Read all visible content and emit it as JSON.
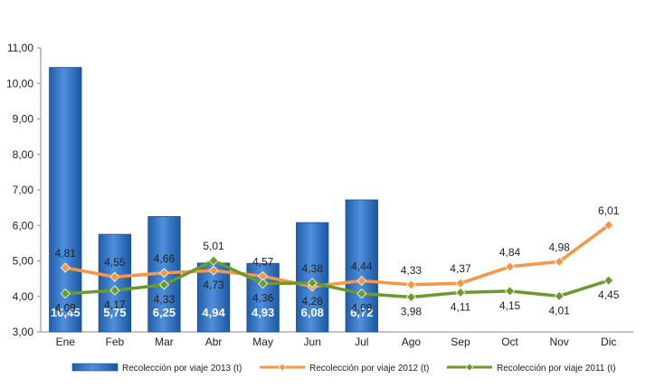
{
  "chart_data": {
    "type": "bar",
    "categories": [
      "Ene",
      "Feb",
      "Mar",
      "Abr",
      "May",
      "Jun",
      "Jul",
      "Ago",
      "Sep",
      "Oct",
      "Nov",
      "Dic"
    ],
    "ylim": [
      3.0,
      11.0
    ],
    "yticks": [
      "3,00",
      "4,00",
      "5,00",
      "6,00",
      "7,00",
      "8,00",
      "9,00",
      "10,00",
      "11,00"
    ],
    "grid": false,
    "legend_position": "bottom",
    "series": [
      {
        "name": "Recolección por viaje 2013 (t)",
        "kind": "bar",
        "color": "#2e75c9",
        "values": [
          10.45,
          5.75,
          6.25,
          4.94,
          4.93,
          6.08,
          6.72,
          null,
          null,
          null,
          null,
          null
        ],
        "labels": [
          "10,45",
          "5,75",
          "6,25",
          "4,94",
          "4,93",
          "6,08",
          "6,72",
          "",
          "",
          "",
          "",
          ""
        ]
      },
      {
        "name": "Recolección por viaje 2012 (t)",
        "kind": "line",
        "color": "#f79646",
        "values": [
          4.81,
          4.55,
          4.66,
          4.73,
          4.57,
          4.28,
          4.44,
          4.33,
          4.37,
          4.84,
          4.98,
          6.01
        ],
        "labels": [
          "4,81",
          "4,55",
          "4,66",
          "4,73",
          "4,57",
          "4,28",
          "4,44",
          "4,33",
          "4,37",
          "4,84",
          "4,98",
          "6,01"
        ]
      },
      {
        "name": "Recolección por viaje 2011 (t)",
        "kind": "line",
        "color": "#6a9a2a",
        "values": [
          4.08,
          4.17,
          4.33,
          5.01,
          4.36,
          4.38,
          4.08,
          3.98,
          4.11,
          4.15,
          4.01,
          4.45
        ],
        "labels": [
          "4,08",
          "4,17",
          "4,33",
          "5,01",
          "4,36",
          "4,38",
          "4,08",
          "3,98",
          "4,11",
          "4,15",
          "4,01",
          "4,45"
        ]
      }
    ]
  }
}
